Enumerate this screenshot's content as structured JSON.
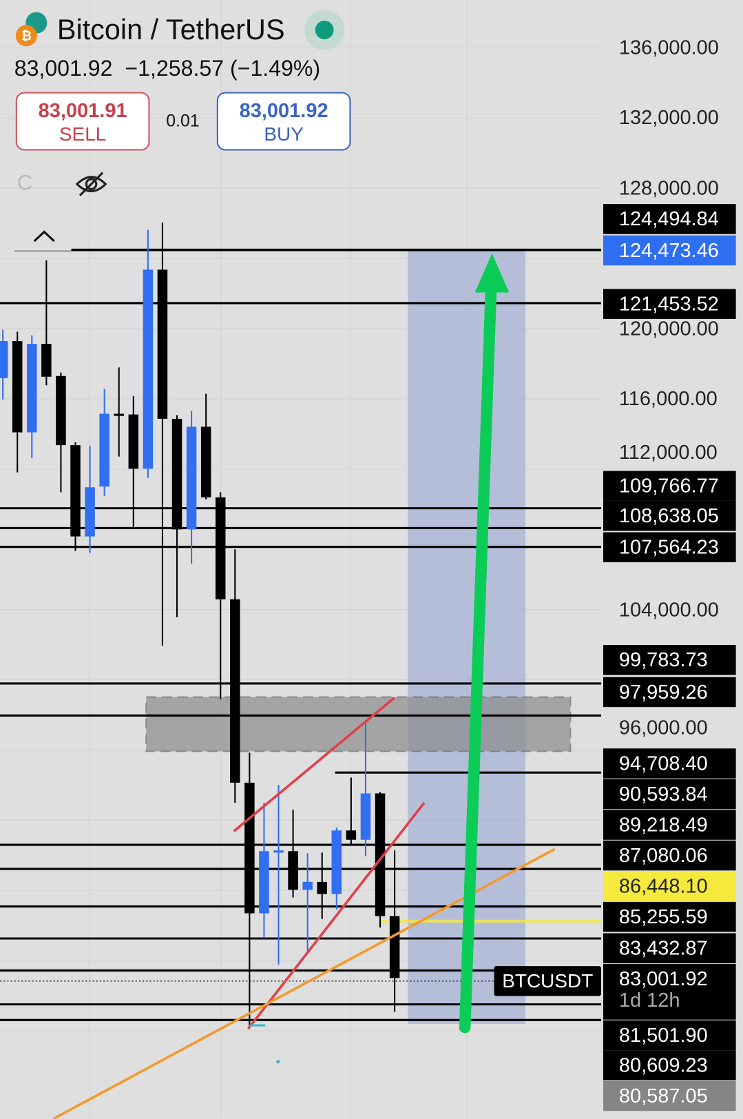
{
  "header": {
    "title": "Bitcoin / TetherUS",
    "last": "83,001.92",
    "change": "−1,258.57",
    "change_pct": "(−1.49%)",
    "status_color": "#0e9b7b",
    "base_icon": "bitcoin-icon",
    "quote_icon": "tether-icon"
  },
  "trade": {
    "sell_price": "83,001.91",
    "sell_label": "SELL",
    "spread": "0.01",
    "buy_price": "83,001.92",
    "buy_label": "BUY"
  },
  "toolbar": {
    "c_label": "C",
    "hide_icon": "eye-off-icon"
  },
  "axis_labels": [
    "136,000.00",
    "132,000.00",
    "128,000.00",
    "120,000.00",
    "116,000.00",
    "112,000.00",
    "104,000.00",
    "96,000.00"
  ],
  "price_tags": [
    {
      "value": "124,494.84",
      "style": "black"
    },
    {
      "value": "124,473.46",
      "style": "blue"
    },
    {
      "value": "121,453.52",
      "style": "black"
    },
    {
      "value": "109,766.77",
      "style": "black"
    },
    {
      "value": "108,638.05",
      "style": "black"
    },
    {
      "value": "107,564.23",
      "style": "black"
    },
    {
      "value": "99,783.73",
      "style": "black"
    },
    {
      "value": "97,959.26",
      "style": "black"
    },
    {
      "value": "94,708.40",
      "style": "black"
    },
    {
      "value": "90,593.84",
      "style": "black"
    },
    {
      "value": "89,218.49",
      "style": "black"
    },
    {
      "value": "87,080.06",
      "style": "black"
    },
    {
      "value": "86,448.10",
      "style": "yellow"
    },
    {
      "value": "85,255.59",
      "style": "black"
    },
    {
      "value": "83,432.87",
      "style": "black"
    },
    {
      "value": "83,001.92",
      "style": "black",
      "sub": "1d 12h"
    },
    {
      "value": "81,501.90",
      "style": "black"
    },
    {
      "value": "80,609.23",
      "style": "black"
    },
    {
      "value": "80,587.05",
      "style": "gray"
    }
  ],
  "symbol_label": "BTCUSDT",
  "colors": {
    "up": "#2f6ff0",
    "down": "#000000",
    "arrow": "#0ccc58",
    "channel": "#e0404a",
    "trend": "#f39a2a",
    "zone": "#9aa9d6",
    "current": "#f5ea3b"
  },
  "chart_data": {
    "type": "candlestick",
    "ylim": [
      78000,
      137000
    ],
    "hlines": [
      124494.84,
      124473.46,
      121453.52,
      109766.77,
      108638.05,
      107564.23,
      99783.73,
      97959.26,
      94708.4,
      90593.84,
      89218.49,
      87080.06,
      85255.59,
      83432.87,
      81501.9,
      80609.23
    ],
    "current_price": 83001.92,
    "alert_price": 86448.1,
    "candles": [
      {
        "o": 117180,
        "h": 119940,
        "l": 115960,
        "c": 119290
      },
      {
        "o": 119290,
        "h": 119820,
        "l": 111810,
        "c": 114090
      },
      {
        "o": 114090,
        "h": 119620,
        "l": 112630,
        "c": 119130
      },
      {
        "o": 119130,
        "h": 123890,
        "l": 116770,
        "c": 117260
      },
      {
        "o": 117300,
        "h": 117500,
        "l": 110680,
        "c": 113360
      },
      {
        "o": 113360,
        "h": 113520,
        "l": 107340,
        "c": 108160
      },
      {
        "o": 108160,
        "h": 113320,
        "l": 107220,
        "c": 110960
      },
      {
        "o": 111000,
        "h": 116570,
        "l": 110470,
        "c": 115150
      },
      {
        "o": 115150,
        "h": 117790,
        "l": 112710,
        "c": 115110
      },
      {
        "o": 115110,
        "h": 116160,
        "l": 108640,
        "c": 112020
      },
      {
        "o": 112020,
        "h": 125630,
        "l": 111490,
        "c": 123360
      },
      {
        "o": 123360,
        "h": 126040,
        "l": 101940,
        "c": 114860
      },
      {
        "o": 114860,
        "h": 115070,
        "l": 103560,
        "c": 108560
      },
      {
        "o": 108560,
        "h": 115310,
        "l": 106610,
        "c": 114410
      },
      {
        "o": 114410,
        "h": 116290,
        "l": 110270,
        "c": 110390
      },
      {
        "o": 110390,
        "h": 110680,
        "l": 98890,
        "c": 104580
      },
      {
        "o": 104580,
        "h": 107420,
        "l": 92990,
        "c": 94130
      },
      {
        "o": 94130,
        "h": 95840,
        "l": 80190,
        "c": 86690
      },
      {
        "o": 86690,
        "h": 92990,
        "l": 85270,
        "c": 90230
      },
      {
        "o": 90230,
        "h": 94010,
        "l": 83770,
        "c": 90270
      },
      {
        "o": 90230,
        "h": 92590,
        "l": 87590,
        "c": 88030
      },
      {
        "o": 88030,
        "h": 90110,
        "l": 84460,
        "c": 88480
      },
      {
        "o": 88480,
        "h": 90150,
        "l": 86370,
        "c": 87790
      },
      {
        "o": 87790,
        "h": 91570,
        "l": 86900,
        "c": 91410
      },
      {
        "o": 91410,
        "h": 94420,
        "l": 90550,
        "c": 90880
      },
      {
        "o": 90880,
        "h": 97670,
        "l": 89940,
        "c": 93520
      },
      {
        "o": 93520,
        "h": 93600,
        "l": 85880,
        "c": 86530
      },
      {
        "o": 86530,
        "h": 90270,
        "l": 81080,
        "c": 83001.92
      }
    ]
  }
}
